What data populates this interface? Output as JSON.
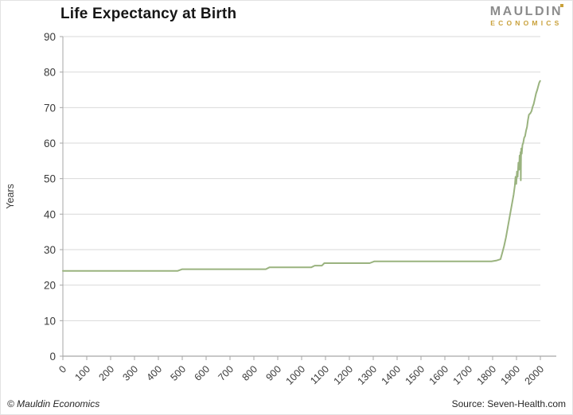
{
  "header": {
    "title": "Life Expectancy at Birth"
  },
  "logo": {
    "line1": "MAULDIN",
    "line2": "ECONOMICS"
  },
  "footer": {
    "copyright": "© Mauldin Economics",
    "source": "Source: Seven-Health.com"
  },
  "colors": {
    "line": "#9ab37f",
    "grid": "#d9d9d9",
    "axis": "#a6a6a6",
    "tick_label": "#3a3a3a",
    "title": "#161616",
    "logo_gray": "#8c8c8c",
    "logo_gold": "#c9a13b"
  },
  "chart_data": {
    "type": "line",
    "title": "Life Expectancy at Birth",
    "xlabel": "",
    "ylabel": "Years",
    "xlim": [
      0,
      2000
    ],
    "ylim": [
      0,
      90
    ],
    "x_ticks": [
      0,
      100,
      200,
      300,
      400,
      500,
      600,
      700,
      800,
      900,
      1000,
      1100,
      1200,
      1300,
      1400,
      1500,
      1600,
      1700,
      1800,
      1900,
      2000
    ],
    "y_ticks": [
      0,
      10,
      20,
      30,
      40,
      50,
      60,
      70,
      80,
      90
    ],
    "grid": "horizontal",
    "legend": "none",
    "series": [
      {
        "name": "Life expectancy at birth (years)",
        "color": "#9ab37f",
        "points": [
          [
            0,
            24
          ],
          [
            480,
            24
          ],
          [
            500,
            24.5
          ],
          [
            850,
            24.5
          ],
          [
            865,
            25
          ],
          [
            1040,
            25
          ],
          [
            1055,
            25.5
          ],
          [
            1085,
            25.5
          ],
          [
            1095,
            26.2
          ],
          [
            1285,
            26.2
          ],
          [
            1305,
            26.7
          ],
          [
            1795,
            26.7
          ],
          [
            1815,
            26.9
          ],
          [
            1833,
            27.3
          ],
          [
            1840,
            29
          ],
          [
            1848,
            31
          ],
          [
            1856,
            33.5
          ],
          [
            1864,
            36.5
          ],
          [
            1872,
            39.5
          ],
          [
            1880,
            42.5
          ],
          [
            1888,
            45.5
          ],
          [
            1893,
            48
          ],
          [
            1896,
            50.5
          ],
          [
            1899,
            48.5
          ],
          [
            1902,
            52
          ],
          [
            1905,
            50.5
          ],
          [
            1908,
            54.5
          ],
          [
            1911,
            52.5
          ],
          [
            1913,
            56.5
          ],
          [
            1915,
            54.5
          ],
          [
            1917,
            57.5
          ],
          [
            1918,
            49.5
          ],
          [
            1919,
            56
          ],
          [
            1920,
            58.5
          ],
          [
            1922,
            57
          ],
          [
            1925,
            59.5
          ],
          [
            1928,
            60
          ],
          [
            1932,
            61.5
          ],
          [
            1936,
            62
          ],
          [
            1940,
            63.5
          ],
          [
            1944,
            64.5
          ],
          [
            1948,
            66.5
          ],
          [
            1952,
            68
          ],
          [
            1958,
            68.4
          ],
          [
            1963,
            69
          ],
          [
            1968,
            70.3
          ],
          [
            1972,
            71
          ],
          [
            1977,
            72.5
          ],
          [
            1982,
            74
          ],
          [
            1987,
            75
          ],
          [
            1991,
            76
          ],
          [
            1995,
            77
          ],
          [
            1999,
            77.5
          ]
        ]
      }
    ]
  }
}
